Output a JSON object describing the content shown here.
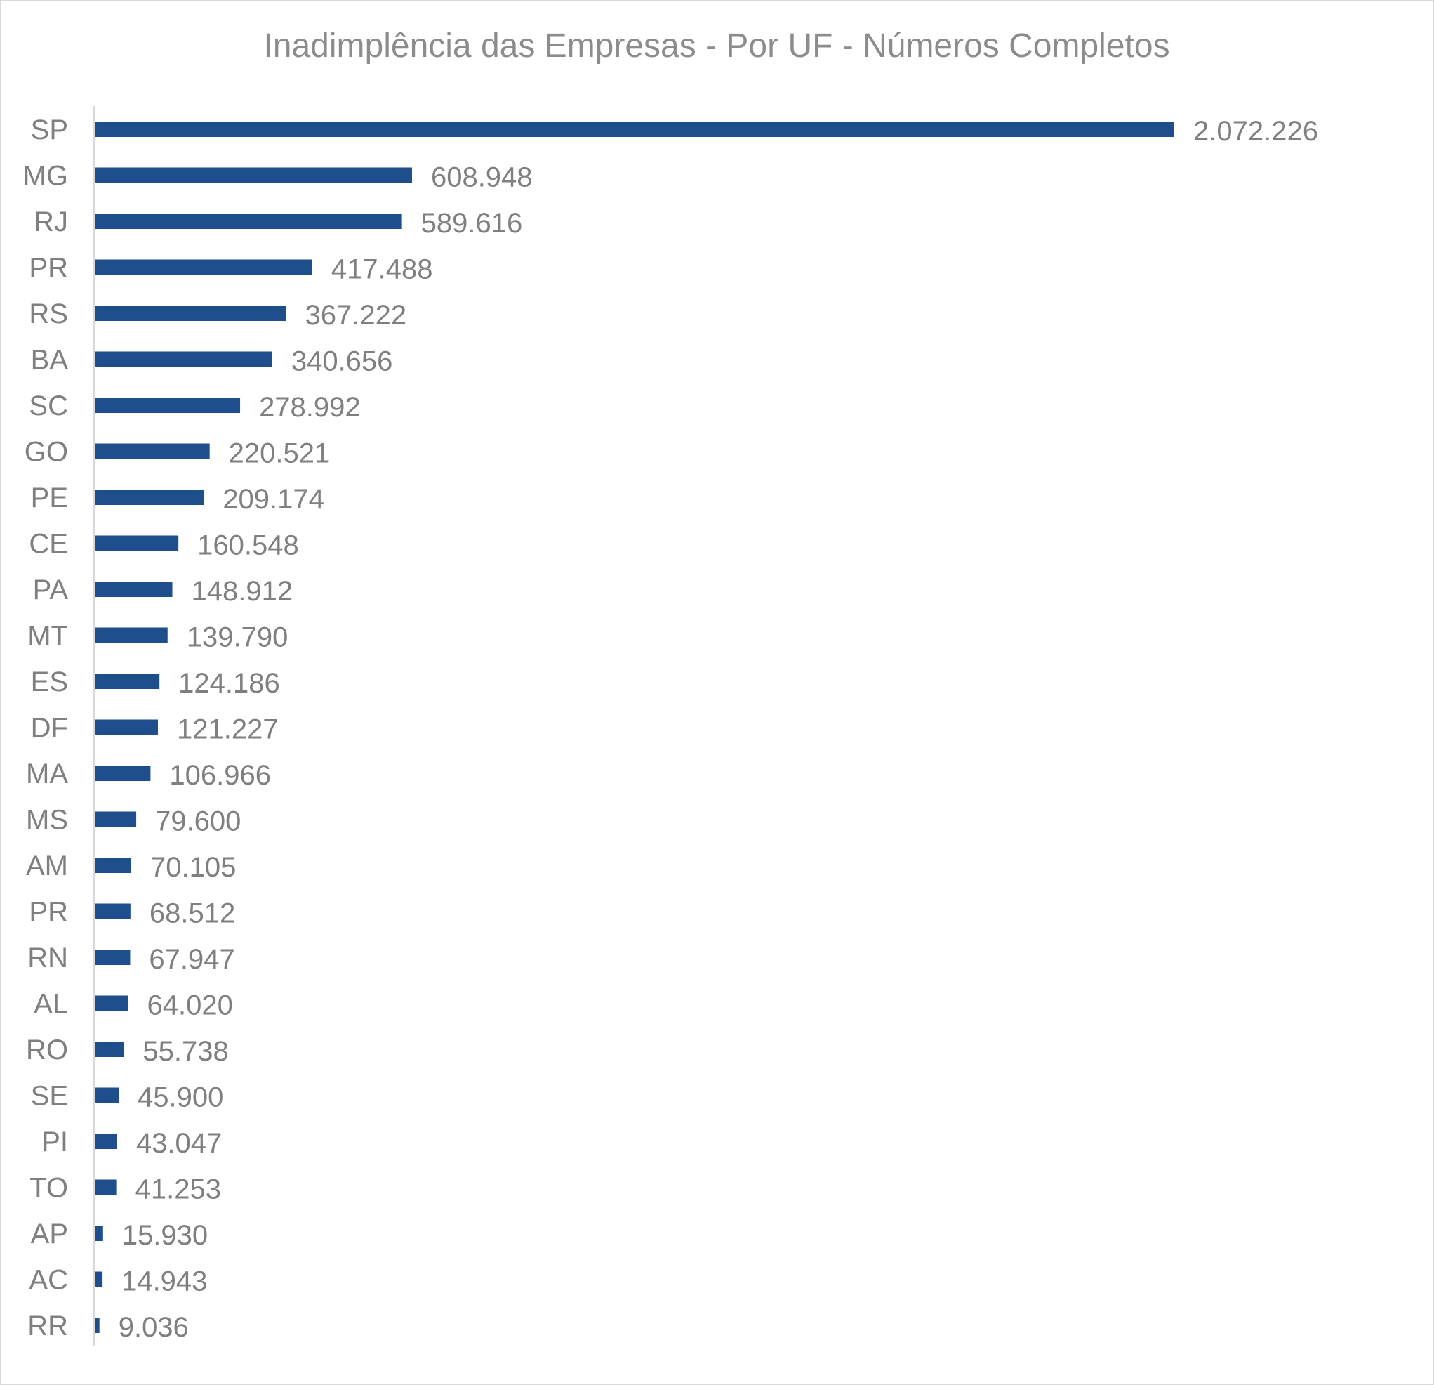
{
  "chart_data": {
    "type": "bar",
    "orientation": "horizontal",
    "title": "Inadimplência das Empresas - Por UF - Números Completos",
    "xlabel": "",
    "ylabel": "",
    "grid": false,
    "legend": "none",
    "bar_color": "#1f4e8c",
    "categories": [
      "SP",
      "MG",
      "RJ",
      "PR",
      "RS",
      "BA",
      "SC",
      "GO",
      "PE",
      "CE",
      "PA",
      "MT",
      "ES",
      "DF",
      "MA",
      "MS",
      "AM",
      "PR",
      "RN",
      "AL",
      "RO",
      "SE",
      "PI",
      "TO",
      "AP",
      "AC",
      "RR"
    ],
    "values": [
      2072226,
      608948,
      589616,
      417488,
      367222,
      340656,
      278992,
      220521,
      209174,
      160548,
      148912,
      139790,
      124186,
      121227,
      106966,
      79600,
      70105,
      68512,
      67947,
      64020,
      55738,
      45900,
      43047,
      41253,
      15930,
      14943,
      9036
    ],
    "value_labels": [
      "2.072.226",
      "608.948",
      "589.616",
      "417.488",
      "367.222",
      "340.656",
      "278.992",
      "220.521",
      "209.174",
      "160.548",
      "148.912",
      "139.790",
      "124.186",
      "121.227",
      "106.966",
      "79.600",
      "70.105",
      "68.512",
      "67.947",
      "64.020",
      "55.738",
      "45.900",
      "43.047",
      "41.253",
      "15.930",
      "14.943",
      "9.036"
    ]
  }
}
